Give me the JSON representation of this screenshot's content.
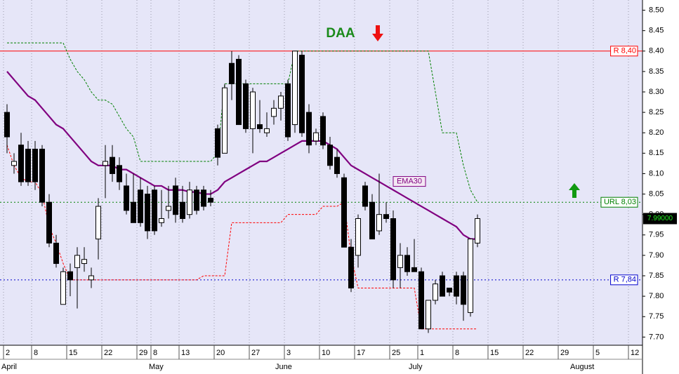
{
  "chart_data": {
    "type": "candlestick",
    "title": "DAA",
    "categories": [
      "2",
      null,
      null,
      null,
      "8",
      null,
      null,
      null,
      null,
      "15",
      null,
      null,
      null,
      null,
      "22",
      null,
      null,
      null,
      null,
      "29",
      null,
      "8",
      null,
      null,
      null,
      "13",
      null,
      null,
      null,
      null,
      "20",
      null,
      null,
      null,
      null,
      "27",
      null,
      null,
      null,
      null,
      "3",
      null,
      null,
      null,
      null,
      "10",
      null,
      null,
      null,
      null,
      "17",
      null,
      null,
      null,
      null,
      "25",
      null,
      null,
      null,
      "1",
      null,
      null,
      null,
      null,
      "8",
      null,
      null,
      null,
      null,
      "15",
      null,
      null,
      null,
      null,
      "22",
      null,
      null,
      null,
      null,
      "29",
      null,
      null,
      null,
      null,
      "5",
      null,
      null,
      null,
      null,
      "12"
    ],
    "months": [
      "April",
      null,
      null,
      null,
      null,
      null,
      null,
      null,
      null,
      null,
      null,
      null,
      null,
      null,
      null,
      null,
      null,
      null,
      null,
      null,
      null,
      "May",
      null,
      null,
      null,
      null,
      null,
      null,
      null,
      null,
      null,
      null,
      null,
      null,
      null,
      null,
      null,
      null,
      null,
      "June",
      null,
      null,
      null,
      null,
      null,
      null,
      null,
      null,
      null,
      null,
      null,
      null,
      null,
      null,
      null,
      null,
      null,
      null,
      "July",
      null,
      null,
      null,
      null,
      null,
      null,
      null,
      null,
      null,
      null,
      null,
      null,
      null,
      null,
      null,
      null,
      null,
      null,
      null,
      null,
      null,
      null,
      "August",
      null,
      null,
      null,
      null,
      null,
      null,
      null,
      null
    ],
    "candles": {
      "open": [
        8.25,
        8.12,
        8.17,
        8.16,
        8.16,
        8.16,
        8.03,
        7.93,
        7.78,
        7.86,
        7.87,
        7.88,
        7.84,
        7.94,
        8.12,
        8.14,
        8.12,
        8.07,
        8.03,
        8.06,
        8.05,
        8.06,
        7.98,
        8.01,
        8.07,
        8.03,
        8.0,
        8.06,
        8.06,
        8.04,
        8.21,
        8.15,
        8.37,
        8.38,
        8.32,
        8.21,
        8.22,
        8.2,
        8.24,
        8.26,
        8.32,
        8.22,
        8.39,
        8.25,
        8.18,
        8.24,
        8.17,
        8.14,
        8.09,
        7.92,
        7.9,
        8.07,
        8.03,
        7.96,
        8.0,
        7.99,
        7.87,
        7.9,
        7.87,
        7.86,
        7.72,
        7.79,
        7.85,
        7.82,
        7.85,
        7.85,
        7.76,
        7.93,
        null,
        null,
        null,
        null,
        null,
        null,
        null,
        null,
        null,
        null,
        null,
        null,
        null,
        null,
        null,
        null,
        null,
        null,
        null,
        null,
        null,
        null
      ],
      "high": [
        8.27,
        8.15,
        8.2,
        8.18,
        8.18,
        8.17,
        8.05,
        7.95,
        7.87,
        7.88,
        7.92,
        7.92,
        7.87,
        8.04,
        8.17,
        8.17,
        8.14,
        8.1,
        8.1,
        8.09,
        8.07,
        8.07,
        8.06,
        8.07,
        8.09,
        8.07,
        8.08,
        8.07,
        8.07,
        8.06,
        8.22,
        8.32,
        8.4,
        8.39,
        8.33,
        8.31,
        8.28,
        8.25,
        8.28,
        8.3,
        8.33,
        8.4,
        8.4,
        8.27,
        8.21,
        8.25,
        8.19,
        8.16,
        8.1,
        7.94,
        8.0,
        8.08,
        8.05,
        8.1,
        8.03,
        8.01,
        7.93,
        7.92,
        7.94,
        7.87,
        7.79,
        7.84,
        7.86,
        7.82,
        7.86,
        7.86,
        7.94,
        8.0,
        null,
        null,
        null,
        null,
        null,
        null,
        null,
        null,
        null,
        null,
        null,
        null,
        null,
        null,
        null,
        null,
        null,
        null,
        null,
        null,
        null,
        null
      ],
      "low": [
        8.15,
        8.1,
        8.07,
        8.07,
        8.06,
        8.02,
        7.92,
        7.87,
        7.78,
        7.8,
        7.77,
        7.86,
        7.82,
        7.89,
        8.04,
        8.08,
        8.06,
        8.0,
        7.98,
        7.97,
        7.94,
        7.95,
        7.97,
        7.99,
        7.98,
        7.98,
        7.99,
        8.0,
        8.01,
        8.02,
        8.12,
        8.15,
        8.28,
        8.22,
        8.2,
        8.15,
        8.2,
        8.19,
        8.22,
        8.23,
        8.18,
        8.2,
        8.19,
        8.15,
        8.17,
        8.16,
        8.11,
        8.09,
        7.92,
        7.81,
        7.87,
        8.01,
        7.94,
        7.95,
        7.98,
        7.82,
        7.82,
        7.85,
        7.86,
        7.72,
        7.71,
        7.78,
        7.8,
        7.8,
        7.78,
        7.74,
        7.75,
        7.92,
        null,
        null,
        null,
        null,
        null,
        null,
        null,
        null,
        null,
        null,
        null,
        null,
        null,
        null,
        null,
        null,
        null,
        null,
        null,
        null,
        null,
        null
      ],
      "close": [
        8.19,
        8.13,
        8.08,
        8.08,
        8.08,
        8.03,
        7.93,
        7.88,
        7.86,
        7.84,
        7.9,
        7.89,
        7.85,
        8.02,
        8.13,
        8.1,
        8.08,
        8.01,
        7.98,
        7.98,
        7.96,
        7.96,
        7.99,
        8.02,
        8.0,
        7.99,
        8.06,
        8.01,
        8.02,
        8.03,
        8.14,
        8.31,
        8.32,
        8.22,
        8.21,
        8.3,
        8.21,
        8.21,
        8.26,
        8.29,
        8.19,
        8.4,
        8.2,
        8.17,
        8.2,
        8.17,
        8.12,
        8.1,
        7.92,
        7.82,
        7.99,
        8.02,
        7.94,
        8.0,
        7.99,
        7.84,
        7.9,
        7.86,
        7.86,
        7.72,
        7.79,
        7.83,
        7.8,
        7.81,
        7.8,
        7.78,
        7.94,
        7.99,
        null,
        null,
        null,
        null,
        null,
        null,
        null,
        null,
        null,
        null,
        null,
        null,
        null,
        null,
        null,
        null,
        null,
        null,
        null,
        null,
        null,
        null
      ]
    },
    "series": [
      {
        "name": "EMA30",
        "color": "#800080",
        "style": "solid",
        "values": [
          8.35,
          8.33,
          8.31,
          8.29,
          8.28,
          8.26,
          8.24,
          8.22,
          8.21,
          8.19,
          8.17,
          8.15,
          8.13,
          8.12,
          8.12,
          8.12,
          8.11,
          8.11,
          8.1,
          8.09,
          8.08,
          8.07,
          8.07,
          8.06,
          8.06,
          8.06,
          8.055,
          8.055,
          8.05,
          8.05,
          8.06,
          8.08,
          8.09,
          8.1,
          8.11,
          8.12,
          8.13,
          8.13,
          8.14,
          8.15,
          8.16,
          8.17,
          8.18,
          8.18,
          8.18,
          8.18,
          8.17,
          8.16,
          8.14,
          8.12,
          8.11,
          8.1,
          8.09,
          8.08,
          8.07,
          8.06,
          8.05,
          8.04,
          8.03,
          8.02,
          8.01,
          8.0,
          7.99,
          7.98,
          7.97,
          7.95,
          7.94,
          7.94,
          null,
          null,
          null,
          null,
          null,
          null,
          null,
          null,
          null,
          null,
          null,
          null,
          null,
          null,
          null,
          null,
          null,
          null,
          null,
          null,
          null,
          null
        ]
      },
      {
        "color": "#008000",
        "style": "dashed",
        "values": [
          8.42,
          8.42,
          8.42,
          8.42,
          8.42,
          8.42,
          8.42,
          8.42,
          8.42,
          8.38,
          8.35,
          8.33,
          8.3,
          8.28,
          8.28,
          8.27,
          8.24,
          8.21,
          8.19,
          8.13,
          8.13,
          8.13,
          8.13,
          8.13,
          8.13,
          8.13,
          8.13,
          8.13,
          8.13,
          8.13,
          8.15,
          8.32,
          8.32,
          8.32,
          8.32,
          8.32,
          8.32,
          8.32,
          8.32,
          8.32,
          8.32,
          8.4,
          8.4,
          8.4,
          8.4,
          8.4,
          8.4,
          8.4,
          8.4,
          8.4,
          8.4,
          8.4,
          8.4,
          8.4,
          8.4,
          8.4,
          8.4,
          8.4,
          8.4,
          8.4,
          8.4,
          8.3,
          8.2,
          8.2,
          8.2,
          8.12,
          8.06,
          8.03,
          null,
          null,
          null,
          null,
          null,
          null,
          null,
          null,
          null,
          null,
          null,
          null,
          null,
          null,
          null,
          null,
          null,
          null,
          null,
          null,
          null,
          null
        ]
      },
      {
        "color": "#ff0000",
        "style": "dashed",
        "values": [
          8.17,
          8.12,
          8.09,
          8.08,
          8.08,
          8.05,
          7.97,
          7.93,
          7.88,
          7.84,
          7.84,
          7.84,
          7.84,
          7.84,
          7.84,
          7.84,
          7.84,
          7.84,
          7.84,
          7.84,
          7.84,
          7.84,
          7.84,
          7.84,
          7.84,
          7.84,
          7.84,
          7.84,
          7.85,
          7.85,
          7.85,
          7.85,
          7.98,
          7.98,
          7.98,
          7.98,
          7.98,
          7.98,
          7.98,
          7.98,
          8.0,
          8.0,
          8.0,
          8.0,
          8.0,
          8.02,
          8.02,
          8.02,
          8.03,
          7.9,
          7.82,
          7.82,
          7.82,
          7.82,
          7.82,
          7.82,
          7.82,
          7.82,
          7.82,
          7.72,
          7.72,
          7.72,
          7.72,
          7.72,
          7.72,
          7.72,
          7.72,
          7.72,
          null,
          null,
          null,
          null,
          null,
          null,
          null,
          null,
          null,
          null,
          null,
          null,
          null,
          null,
          null,
          null,
          null,
          null,
          null,
          null,
          null,
          null
        ]
      }
    ],
    "hlines": [
      {
        "label": "R 8,40",
        "value": 8.4,
        "color": "#ff0000",
        "style": "solid"
      },
      {
        "label": "URL 8,03",
        "value": 8.03,
        "color": "#008000",
        "style": "dotted"
      },
      {
        "label": "R 7,84",
        "value": 7.84,
        "color": "#0000cc",
        "style": "dotted"
      }
    ],
    "last": {
      "value": 7.99,
      "label": "7.99000"
    },
    "ylim": [
      7.68,
      8.525
    ],
    "yticks": [
      {
        "value": 7.7,
        "label": "7.70"
      },
      {
        "value": 7.75,
        "label": "7.75"
      },
      {
        "value": 7.8,
        "label": "7.80"
      },
      {
        "value": 7.85,
        "label": "7.85"
      },
      {
        "value": 7.9,
        "label": "7.90"
      },
      {
        "value": 7.95,
        "label": "7.95"
      },
      {
        "value": 8.0,
        "label": "8.00"
      },
      {
        "value": 8.05,
        "label": "8.05"
      },
      {
        "value": 8.1,
        "label": "8.10"
      },
      {
        "value": 8.15,
        "label": "8.15"
      },
      {
        "value": 8.2,
        "label": "8.20"
      },
      {
        "value": 8.25,
        "label": "8.25"
      },
      {
        "value": 8.3,
        "label": "8.30"
      },
      {
        "value": 8.35,
        "label": "8.35"
      },
      {
        "value": 8.4,
        "label": "8.40"
      },
      {
        "value": 8.45,
        "label": "8.45"
      },
      {
        "value": 8.5,
        "label": "8.50"
      }
    ],
    "grid": true
  }
}
